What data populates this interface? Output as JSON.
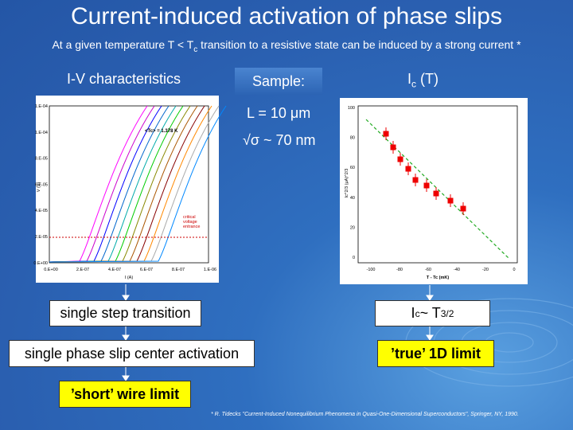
{
  "header": {
    "title": "Current-induced activation of phase slips",
    "subtitle": {
      "before": "At a given temperature T < T",
      "sub": "c",
      "after": " transition to a resistive state can be induced by a strong current *"
    }
  },
  "labels": {
    "iv": "I-V characteristics",
    "sample": "Sample:",
    "ic": {
      "main": "I",
      "sub": "c",
      "after": " (T)"
    },
    "length": "L = 10 μm",
    "sigma": "√σ ~ 70 nm"
  },
  "iv_plot": {
    "yticks": [
      "1.E-04",
      "1.E-04",
      "8.E-05",
      "6.E-05",
      "4.E-05",
      "2.E-05",
      "0.E+00"
    ],
    "xticks": [
      "0.E+00",
      "2.E-07",
      "4.E-07",
      "6.E-07",
      "8.E-07",
      "1.E-06"
    ],
    "xlabel": "I (A)",
    "ylabel": "V (V)",
    "note": "<Tc> = 1.378 K",
    "annotation": "critical voltage entrance"
  },
  "ic_plot": {
    "yticks": [
      "100",
      "80",
      "60",
      "40",
      "20",
      "0"
    ],
    "xticks": [
      "-100",
      "-80",
      "-60",
      "-40",
      "-20",
      "0"
    ],
    "xlabel": "T - Tc (mK)",
    "ylabel": "Ic^2/3 (μA)^2/3"
  },
  "boxes": {
    "step": "single step transition",
    "center": "single phase slip center activation",
    "power": {
      "main": "I",
      "sub": "c",
      "mid": " ~ T",
      "sup": "3/2"
    },
    "true1d": "’true’ 1D limit",
    "short": "’short’ wire limit"
  },
  "footnote": "* R. Tidecks \"Current-Induced Nonequilibrium Phenomena in Quasi-One-Dimensional Superconductors\", Springer, NY, 1990."
}
